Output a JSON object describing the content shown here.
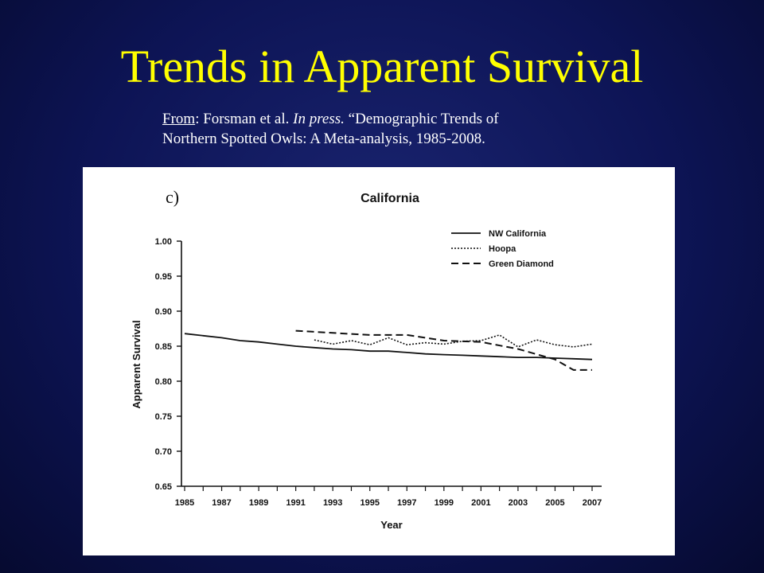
{
  "slide": {
    "title": "Trends in Apparent Survival",
    "source_prefix": "From",
    "source_part1": ": Forsman et al. ",
    "source_italic": "In press.",
    "source_part2": " “Demographic Trends of",
    "source_line2": "Northern Spotted Owls: A Meta-analysis, 1985-2008."
  },
  "colors": {
    "background": "#0d1455",
    "title": "#ffff00",
    "source_text": "#ffffff",
    "figure_bg": "#ffffff",
    "ink": "#111111"
  },
  "chart_data": {
    "type": "line",
    "panel_label": "c)",
    "title": "California",
    "xlabel": "Year",
    "ylabel": "Apparent Survival",
    "xlim": [
      1985,
      2007
    ],
    "ylim": [
      0.65,
      1.0
    ],
    "xticks": [
      "1985",
      "1987",
      "1989",
      "1991",
      "1993",
      "1995",
      "1997",
      "1999",
      "2001",
      "2003",
      "2005",
      "2007"
    ],
    "yticks": [
      "0.65",
      "0.70",
      "0.75",
      "0.80",
      "0.85",
      "0.90",
      "0.95",
      "1.00"
    ],
    "legend_position": "top-right",
    "series": [
      {
        "name": "NW California",
        "style": "solid",
        "x": [
          1985,
          1986,
          1987,
          1988,
          1989,
          1990,
          1991,
          1992,
          1993,
          1994,
          1995,
          1996,
          1997,
          1998,
          1999,
          2000,
          2001,
          2002,
          2003,
          2004,
          2005,
          2006,
          2007
        ],
        "values": [
          0.868,
          0.865,
          0.862,
          0.858,
          0.856,
          0.853,
          0.85,
          0.848,
          0.846,
          0.845,
          0.843,
          0.843,
          0.841,
          0.839,
          0.838,
          0.837,
          0.836,
          0.835,
          0.834,
          0.834,
          0.833,
          0.832,
          0.831
        ]
      },
      {
        "name": "Hoopa",
        "style": "dotted",
        "x": [
          1992,
          1993,
          1994,
          1995,
          1996,
          1997,
          1998,
          1999,
          2000,
          2001,
          2002,
          2003,
          2004,
          2005,
          2006,
          2007
        ],
        "values": [
          0.859,
          0.853,
          0.858,
          0.852,
          0.862,
          0.852,
          0.855,
          0.853,
          0.857,
          0.858,
          0.866,
          0.849,
          0.859,
          0.852,
          0.849,
          0.853
        ]
      },
      {
        "name": "Green Diamond",
        "style": "dashed",
        "x": [
          1991,
          1993,
          1995,
          1997,
          1999,
          2001,
          2003,
          2005,
          2006,
          2007
        ],
        "values": [
          0.872,
          0.869,
          0.866,
          0.866,
          0.858,
          0.856,
          0.846,
          0.831,
          0.816,
          0.816
        ]
      }
    ]
  }
}
